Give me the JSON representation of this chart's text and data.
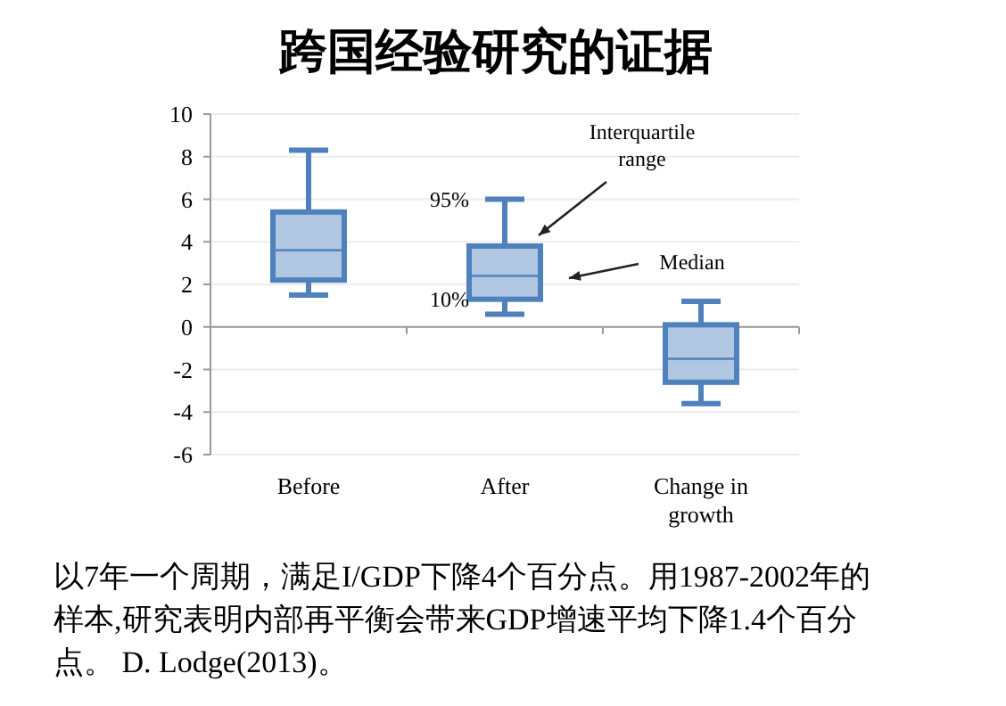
{
  "chart_data": {
    "type": "box",
    "title": "跨国经验研究的证据",
    "categories": [
      "Before",
      "After",
      "Change in growth"
    ],
    "boxes": [
      {
        "low": 1.5,
        "q1": 2.2,
        "median": 3.6,
        "q3": 5.4,
        "high": 8.3
      },
      {
        "low": 0.6,
        "q1": 1.3,
        "median": 2.4,
        "q3": 3.8,
        "high": 6.0
      },
      {
        "low": -3.6,
        "q1": -2.6,
        "median": -1.5,
        "q3": 0.1,
        "high": 1.2
      }
    ],
    "color": "#4f81bd",
    "ylim": [
      -6,
      10
    ],
    "yticks": [
      -6,
      -4,
      -2,
      0,
      2,
      4,
      6,
      8,
      10
    ],
    "grid": "y",
    "annotations": [
      "Interquartile range",
      "Median",
      {
        "text": "95%",
        "x": "After",
        "y": 6.0
      },
      {
        "text": "10%",
        "x": "After",
        "y": 0.6
      },
      "以7年一个周期，满足I/GDP下降4个百分点。用1987-2002年的样本,研究表明内部再平衡会带来GDP增速平均下降1.4个百分点。 D. Lodge(2013)。"
    ]
  }
}
